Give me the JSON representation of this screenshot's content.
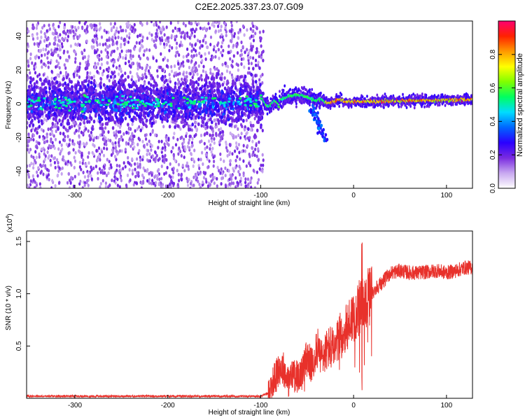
{
  "title": "C2E2.2025.337.23.07.G09",
  "chart_data": [
    {
      "type": "heatmap",
      "title": "C2E2.2025.337.23.07.G09",
      "xlabel": "Height of straight line (km)",
      "ylabel": "Frequency (Hz)",
      "xlim": [
        -352,
        128
      ],
      "ylim": [
        -50,
        49
      ],
      "xticks": [
        -300,
        -200,
        -100,
        0,
        100
      ],
      "xtick_labels": [
        "-300",
        "-200",
        "-100",
        "0",
        "100"
      ],
      "yticks": [
        -40,
        -20,
        0,
        20,
        40
      ],
      "ytick_labels": [
        "-40",
        "-20",
        "0",
        "20",
        "40"
      ],
      "colorbar": {
        "label": "Normalized spectral amplitude",
        "range": [
          0,
          1
        ],
        "ticks": [
          0.0,
          0.2,
          0.4,
          0.6,
          0.8
        ],
        "tick_labels": [
          "0.0",
          "0.2",
          "0.4",
          "0.6",
          "0.8"
        ],
        "colormap": [
          "#ffffff",
          "#c8a8f0",
          "#7a2be0",
          "#2a00ff",
          "#0066ff",
          "#00dcff",
          "#00ff60",
          "#80ff00",
          "#ffff00",
          "#ff9900",
          "#ff2200",
          "#ff0070"
        ]
      },
      "description_of_content": [
        {
          "x_range": [
            -352,
            -97
          ],
          "behavior": "broadband noise scatter spanning full frequency range, concentrated band near 0 Hz (±8 Hz), amplitudes mostly 0.1-0.4"
        },
        {
          "x_range": [
            -97,
            128
          ],
          "behavior": "narrow carrier line near 0-3 Hz, amplitude rising from ~0.5 to ~1.0; small fading branch from (-40, -5 Hz) to (-30, -20 Hz)"
        }
      ]
    },
    {
      "type": "line",
      "xlabel": "Height of straight line (km)",
      "ylabel": "SNR (10 * v/v)",
      "yscale_label": "(x10",
      "yscale_exp": "4",
      "yscale_close": ")",
      "xlim": [
        -352,
        128
      ],
      "ylim": [
        0,
        1.6
      ],
      "xticks": [
        -300,
        -200,
        -100,
        0,
        100
      ],
      "xtick_labels": [
        "-300",
        "-200",
        "-100",
        "0",
        "100"
      ],
      "yticks": [
        0.5,
        1.0,
        1.5
      ],
      "ytick_labels": [
        "0.5",
        "1.0",
        "1.5"
      ],
      "color": "#e8312b",
      "series": [
        {
          "name": "SNR",
          "x": [
            -352,
            -300,
            -200,
            -100,
            -92,
            -85,
            -80,
            -75,
            -70,
            -65,
            -60,
            -55,
            -50,
            -45,
            -40,
            -35,
            -30,
            -25,
            -20,
            -15,
            -10,
            -5,
            0,
            5,
            10,
            15,
            20,
            25,
            30,
            35,
            40,
            50,
            60,
            70,
            80,
            90,
            100,
            110,
            120,
            128
          ],
          "values": [
            0.02,
            0.02,
            0.02,
            0.02,
            0.05,
            0.2,
            0.3,
            0.28,
            0.15,
            0.25,
            0.2,
            0.25,
            0.4,
            0.3,
            0.5,
            0.38,
            0.45,
            0.5,
            0.45,
            0.6,
            0.62,
            0.72,
            0.8,
            0.85,
            0.88,
            0.95,
            1.0,
            1.07,
            1.1,
            1.15,
            1.2,
            1.22,
            1.2,
            1.2,
            1.21,
            1.22,
            1.2,
            1.22,
            1.25,
            1.25
          ]
        }
      ]
    }
  ]
}
